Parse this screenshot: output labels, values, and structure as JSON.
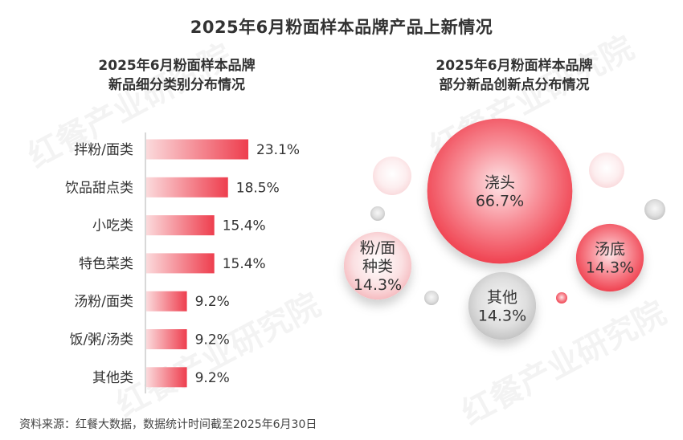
{
  "title": "2025年6月粉面样本品牌产品上新情况",
  "watermark": "红餐产业研究院",
  "source": "资料来源：红餐大数据，数据统计时间截至2025年6月30日",
  "colors": {
    "bar_start": "#fbdadc",
    "bar_end": "#ee3e4e",
    "axis": "#cccccc",
    "bubble_red": "#f0434f",
    "bubble_pink": "#f8c2c6",
    "bubble_gray": "#cccccc"
  },
  "chart_data": [
    {
      "type": "bar",
      "orientation": "horizontal",
      "title": "2025年6月粉面样本品牌\n新品细分类别分布情况",
      "categories": [
        "拌粉/面类",
        "饮品甜点类",
        "小吃类",
        "特色菜类",
        "汤粉/面类",
        "饭/粥/汤类",
        "其他类"
      ],
      "values": [
        23.1,
        18.5,
        15.4,
        15.4,
        9.2,
        9.2,
        9.2
      ],
      "value_labels": [
        "23.1%",
        "18.5%",
        "15.4%",
        "15.4%",
        "9.2%",
        "9.2%",
        "9.2%"
      ],
      "unit": "%",
      "xlim": [
        0,
        30
      ],
      "grid": false
    },
    {
      "type": "bubble",
      "title": "2025年6月粉面样本品牌\n部分新品创新点分布情况",
      "categories": [
        "浇头",
        "粉/面种类",
        "汤底",
        "其他"
      ],
      "label_lines": [
        [
          "浇头",
          "66.7%"
        ],
        [
          "粉/面",
          "种类",
          "14.3%"
        ],
        [
          "汤底",
          "14.3%"
        ],
        [
          "其他",
          "14.3%"
        ]
      ],
      "values": [
        66.7,
        14.3,
        14.3,
        14.3
      ],
      "unit": "%",
      "colors": [
        "red",
        "pink",
        "red",
        "gray"
      ]
    }
  ]
}
